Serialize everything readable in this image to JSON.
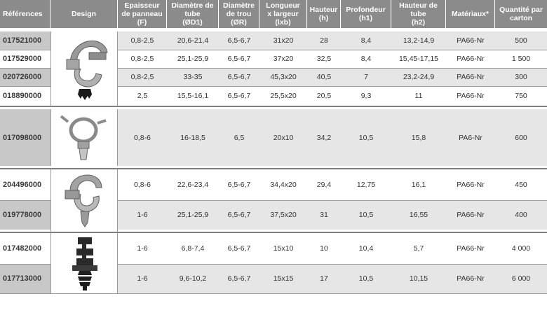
{
  "headers": {
    "ref": "Références",
    "design": "Design",
    "panel": [
      "Epaisseur",
      "de panneau",
      "(F)"
    ],
    "tube_diameter": [
      "Diamètre de",
      "tube",
      "(ØD1)"
    ],
    "hole": [
      "Diamètre",
      "de trou",
      "(ØR)"
    ],
    "size": [
      "Longueur",
      "x largeur",
      "(lxb)"
    ],
    "height": [
      "Hauteur",
      "(h)"
    ],
    "depth": [
      "Profondeur",
      "(h1)"
    ],
    "tube_height": [
      "Hauteur de",
      "tube",
      "(h2)"
    ],
    "material": "Matériaux*",
    "qty": [
      "Quantité par",
      "carton"
    ]
  },
  "rows": [
    {
      "ref": "017521000",
      "panel": "0,8-2,5",
      "tube_diameter": "20,6-21,4",
      "hole": "6,5-6,7",
      "size": "31x20",
      "height": "28",
      "depth": "8,4",
      "tube_height": "13,2-14,9",
      "material": "PA66-Nr",
      "qty": "500"
    },
    {
      "ref": "017529000",
      "panel": "0,8-2,5",
      "tube_diameter": "25,1-25,9",
      "hole": "6,5-6,7",
      "size": "37x20",
      "height": "32,5",
      "depth": "8,4",
      "tube_height": "15,45-17,15",
      "material": "PA66-Nr",
      "qty": "1 500"
    },
    {
      "ref": "020726000",
      "panel": "0,8-2,5",
      "tube_diameter": "33-35",
      "hole": "6,5-6,7",
      "size": "45,3x20",
      "height": "40,5",
      "depth": "7",
      "tube_height": "23,2-24,9",
      "material": "PA66-Nr",
      "qty": "300"
    },
    {
      "ref": "018890000",
      "panel": "2,5",
      "tube_diameter": "15,5-16,1",
      "hole": "6,5-6,7",
      "size": "25,5x20",
      "height": "20,5",
      "depth": "9,3",
      "tube_height": "11",
      "material": "PA66-Nr",
      "qty": "750"
    },
    {
      "ref": "017098000",
      "panel": "0,8-6",
      "tube_diameter": "16-18,5",
      "hole": "6,5",
      "size": "20x10",
      "height": "34,2",
      "depth": "10,5",
      "tube_height": "15,8",
      "material": "PA6-Nr",
      "qty": "600"
    },
    {
      "ref": "204496000",
      "panel": "0,8-6",
      "tube_diameter": "22,6-23,4",
      "hole": "6,5-6,7",
      "size": "34,4x20",
      "height": "29,4",
      "depth": "12,75",
      "tube_height": "16,1",
      "material": "PA66-Nr",
      "qty": "450"
    },
    {
      "ref": "019778000",
      "panel": "1-6",
      "tube_diameter": "25,1-25,9",
      "hole": "6,5-6,7",
      "size": "37,5x20",
      "height": "31",
      "depth": "10,5",
      "tube_height": "16,55",
      "material": "PA66-Nr",
      "qty": "400"
    },
    {
      "ref": "017482000",
      "panel": "1-6",
      "tube_diameter": "6,8-7,4",
      "hole": "6,5-6,7",
      "size": "15x10",
      "height": "10",
      "depth": "10,4",
      "tube_height": "5,7",
      "material": "PA66-Nr",
      "qty": "4 000"
    },
    {
      "ref": "017713000",
      "panel": "1-6",
      "tube_diameter": "9,6-10,2",
      "hole": "6,5-6,7",
      "size": "15x15",
      "height": "17",
      "depth": "10,5",
      "tube_height": "10,15",
      "material": "PA66-Nr",
      "qty": "6 000"
    }
  ],
  "images": [
    {
      "name": "clip-with-black-fastener-icon"
    },
    {
      "name": "open-ring-clip-icon"
    },
    {
      "name": "clip-with-arrow-fastener-icon"
    },
    {
      "name": "black-fir-tree-clip-icon"
    }
  ]
}
